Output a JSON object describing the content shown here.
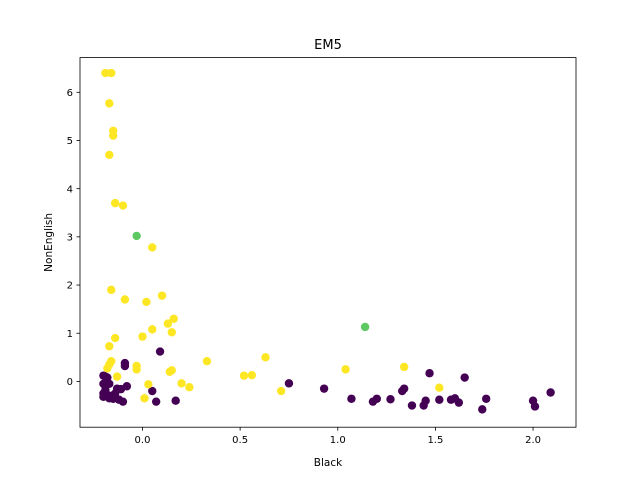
{
  "chart_data": {
    "type": "scatter",
    "title": "EM5",
    "xlabel": "Black",
    "ylabel": "NonEnglish",
    "xlim": [
      -0.32,
      2.22
    ],
    "ylim": [
      -0.95,
      6.72
    ],
    "xticks": [
      0.0,
      0.5,
      1.0,
      1.5,
      2.0
    ],
    "xtick_labels": [
      "0.0",
      "0.5",
      "1.0",
      "1.5",
      "2.0"
    ],
    "yticks": [
      0,
      1,
      2,
      3,
      4,
      5,
      6
    ],
    "ytick_labels": [
      "0",
      "1",
      "2",
      "3",
      "4",
      "5",
      "6"
    ],
    "grid": false,
    "legend": "none",
    "colors": {
      "purple": "#440154",
      "yellow": "#fde725",
      "green": "#5ec962"
    },
    "series": [
      {
        "color": "#440154",
        "points": [
          [
            -0.2,
            0.12
          ],
          [
            -0.19,
            0.1
          ],
          [
            -0.18,
            0.08
          ],
          [
            -0.2,
            -0.05
          ],
          [
            -0.19,
            -0.1
          ],
          [
            -0.17,
            -0.05
          ],
          [
            -0.19,
            -0.18
          ],
          [
            -0.2,
            -0.25
          ],
          [
            -0.18,
            -0.28
          ],
          [
            -0.2,
            -0.32
          ],
          [
            -0.17,
            -0.35
          ],
          [
            -0.16,
            -0.3
          ],
          [
            -0.15,
            -0.36
          ],
          [
            -0.14,
            -0.25
          ],
          [
            -0.13,
            -0.15
          ],
          [
            -0.11,
            -0.16
          ],
          [
            -0.12,
            -0.38
          ],
          [
            -0.1,
            -0.42
          ],
          [
            -0.08,
            -0.1
          ],
          [
            -0.09,
            0.38
          ],
          [
            -0.09,
            0.32
          ],
          [
            0.05,
            -0.2
          ],
          [
            0.07,
            -0.42
          ],
          [
            0.09,
            0.62
          ],
          [
            0.17,
            -0.4
          ],
          [
            0.75,
            -0.04
          ],
          [
            0.93,
            -0.15
          ],
          [
            1.07,
            -0.36
          ],
          [
            1.18,
            -0.42
          ],
          [
            1.2,
            -0.36
          ],
          [
            1.27,
            -0.37
          ],
          [
            1.33,
            -0.2
          ],
          [
            1.34,
            -0.15
          ],
          [
            1.38,
            -0.5
          ],
          [
            1.44,
            -0.5
          ],
          [
            1.45,
            -0.4
          ],
          [
            1.47,
            0.17
          ],
          [
            1.52,
            -0.38
          ],
          [
            1.58,
            -0.38
          ],
          [
            1.6,
            -0.35
          ],
          [
            1.62,
            -0.44
          ],
          [
            1.65,
            0.08
          ],
          [
            1.74,
            -0.58
          ],
          [
            1.76,
            -0.36
          ],
          [
            2.0,
            -0.4
          ],
          [
            2.01,
            -0.52
          ],
          [
            2.09,
            -0.23
          ]
        ]
      },
      {
        "color": "#fde725",
        "points": [
          [
            -0.19,
            6.4
          ],
          [
            -0.16,
            6.4
          ],
          [
            -0.17,
            5.77
          ],
          [
            -0.15,
            5.2
          ],
          [
            -0.15,
            5.1
          ],
          [
            -0.17,
            4.7
          ],
          [
            -0.14,
            3.7
          ],
          [
            -0.1,
            3.65
          ],
          [
            0.05,
            2.78
          ],
          [
            -0.16,
            1.9
          ],
          [
            -0.09,
            1.7
          ],
          [
            0.02,
            1.65
          ],
          [
            0.1,
            1.78
          ],
          [
            0.16,
            1.3
          ],
          [
            0.13,
            1.2
          ],
          [
            0.05,
            1.08
          ],
          [
            0.15,
            1.02
          ],
          [
            0.0,
            0.93
          ],
          [
            -0.14,
            0.9
          ],
          [
            -0.17,
            0.73
          ],
          [
            -0.16,
            0.42
          ],
          [
            -0.17,
            0.35
          ],
          [
            -0.18,
            0.27
          ],
          [
            -0.03,
            0.32
          ],
          [
            -0.03,
            0.25
          ],
          [
            -0.13,
            0.1
          ],
          [
            0.14,
            0.2
          ],
          [
            0.15,
            0.23
          ],
          [
            0.33,
            0.42
          ],
          [
            0.52,
            0.12
          ],
          [
            0.56,
            0.13
          ],
          [
            0.63,
            0.5
          ],
          [
            0.71,
            -0.2
          ],
          [
            1.04,
            0.25
          ],
          [
            1.34,
            0.3
          ],
          [
            1.52,
            -0.13
          ],
          [
            0.03,
            -0.06
          ],
          [
            0.01,
            -0.35
          ],
          [
            0.2,
            -0.04
          ],
          [
            0.24,
            -0.12
          ]
        ]
      },
      {
        "color": "#5ec962",
        "points": [
          [
            -0.03,
            3.02
          ],
          [
            1.14,
            1.13
          ]
        ]
      }
    ]
  }
}
